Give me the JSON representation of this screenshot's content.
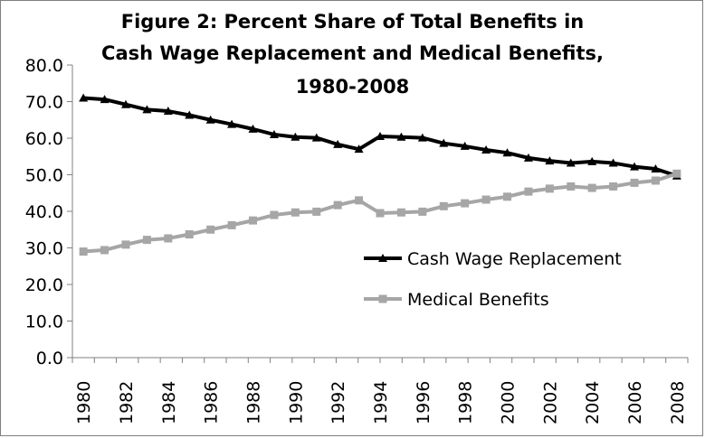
{
  "chart_data": {
    "type": "line",
    "title": "Figure 2: Percent Share of Total Benefits in",
    "title_line2": "Cash Wage Replacement and Medical Benefits,",
    "title_line3": "1980-2008",
    "xlabel": "",
    "ylabel": "",
    "ylim": [
      0,
      80
    ],
    "yticks": [
      "0.0",
      "10.0",
      "20.0",
      "30.0",
      "40.0",
      "50.0",
      "60.0",
      "70.0",
      "80.0"
    ],
    "xtick_labels": [
      "1980",
      "1982",
      "1984",
      "1986",
      "1988",
      "1990",
      "1992",
      "1994",
      "1996",
      "1998",
      "2000",
      "2002",
      "2004",
      "2006",
      "2008"
    ],
    "x": [
      1980,
      1981,
      1982,
      1983,
      1984,
      1985,
      1986,
      1987,
      1988,
      1989,
      1990,
      1991,
      1992,
      1993,
      1994,
      1995,
      1996,
      1997,
      1998,
      1999,
      2000,
      2001,
      2002,
      2003,
      2004,
      2005,
      2006,
      2007,
      2008
    ],
    "grid": false,
    "legend_position": "right-middle",
    "series": [
      {
        "name": "Cash Wage Replacement",
        "color": "#000000",
        "marker": "triangle",
        "values": [
          71.0,
          70.6,
          69.2,
          67.8,
          67.4,
          66.3,
          65.0,
          63.8,
          62.5,
          61.0,
          60.3,
          60.1,
          58.3,
          57.0,
          60.5,
          60.3,
          60.1,
          58.6,
          57.8,
          56.8,
          56.0,
          54.6,
          53.8,
          53.2,
          53.6,
          53.2,
          52.2,
          51.6,
          49.7
        ]
      },
      {
        "name": "Medical Benefits",
        "color": "#a6a6a6",
        "marker": "square",
        "values": [
          29.0,
          29.4,
          30.9,
          32.2,
          32.6,
          33.7,
          35.0,
          36.2,
          37.5,
          39.0,
          39.7,
          39.9,
          41.7,
          43.0,
          39.5,
          39.7,
          39.9,
          41.4,
          42.2,
          43.2,
          44.0,
          45.4,
          46.2,
          46.8,
          46.4,
          46.8,
          47.8,
          48.4,
          50.3
        ]
      }
    ]
  }
}
